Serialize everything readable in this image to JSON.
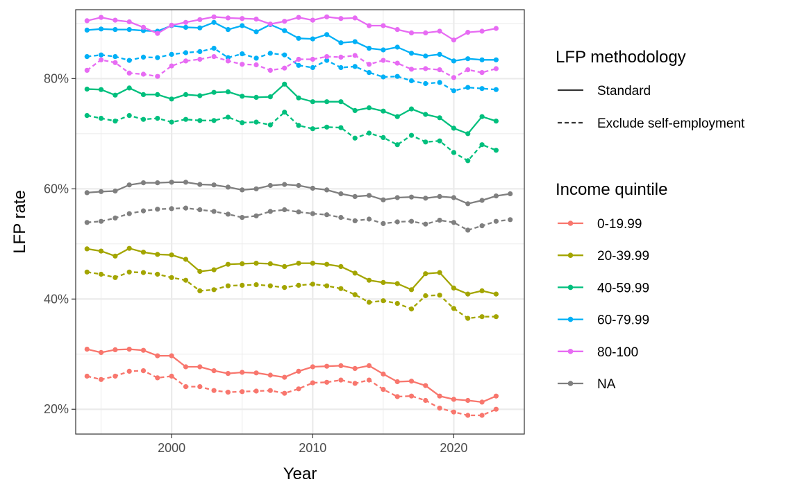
{
  "chart_data": {
    "type": "line",
    "xlabel": "Year",
    "ylabel": "LFP rate",
    "xlim": [
      1993.2,
      2025.0
    ],
    "ylim": [
      15.5,
      92.5
    ],
    "x_ticks": [
      2000,
      2010,
      2020
    ],
    "y_ticks": [
      20,
      40,
      60,
      80
    ],
    "y_tick_labels": [
      "20%",
      "40%",
      "60%",
      "80%"
    ],
    "grid": true,
    "legend_placement": "right",
    "linetype_legend": {
      "title": "LFP methodology",
      "entries": [
        {
          "label": "Standard",
          "linetype": "solid"
        },
        {
          "label": "Exclude self-employment",
          "linetype": "dashed"
        }
      ]
    },
    "color_legend": {
      "title": "Income quintile",
      "entries": [
        {
          "label": "0-19.99",
          "color": "#F8766D"
        },
        {
          "label": "20-39.99",
          "color": "#A3A500"
        },
        {
          "label": "40-59.99",
          "color": "#00BF7D"
        },
        {
          "label": "60-79.99",
          "color": "#00B0F6"
        },
        {
          "label": "80-100",
          "color": "#E76BF3"
        },
        {
          "label": "NA",
          "color": "#7F7F7F"
        }
      ]
    },
    "series": [
      {
        "quintile": "0-19.99",
        "method": "Standard",
        "x": [
          1994,
          1995,
          1996,
          1997,
          1998,
          1999,
          2000,
          2001,
          2002,
          2003,
          2004,
          2005,
          2006,
          2007,
          2008,
          2009,
          2010,
          2011,
          2012,
          2013,
          2014,
          2015,
          2016,
          2017,
          2018,
          2019,
          2020,
          2021,
          2022,
          2023
        ],
        "values": [
          30.9,
          30.3,
          30.8,
          30.9,
          30.7,
          29.7,
          29.7,
          27.7,
          27.7,
          27.0,
          26.5,
          26.7,
          26.6,
          26.2,
          25.8,
          26.9,
          27.7,
          27.8,
          27.9,
          27.4,
          27.9,
          26.4,
          25.0,
          25.1,
          24.3,
          22.4,
          21.8,
          21.6,
          21.3,
          22.4
        ]
      },
      {
        "quintile": "0-19.99",
        "method": "Exclude self-employment",
        "x": [
          1994,
          1995,
          1996,
          1997,
          1998,
          1999,
          2000,
          2001,
          2002,
          2003,
          2004,
          2005,
          2006,
          2007,
          2008,
          2009,
          2010,
          2011,
          2012,
          2013,
          2014,
          2015,
          2016,
          2017,
          2018,
          2019,
          2020,
          2021,
          2022,
          2023
        ],
        "values": [
          26.0,
          25.4,
          26.0,
          26.9,
          27.0,
          25.7,
          26.0,
          24.1,
          24.1,
          23.4,
          23.1,
          23.2,
          23.3,
          23.4,
          22.9,
          23.7,
          24.8,
          24.9,
          25.3,
          24.7,
          25.3,
          23.6,
          22.3,
          22.4,
          21.6,
          20.2,
          19.5,
          18.9,
          18.9,
          20.0
        ]
      },
      {
        "quintile": "20-39.99",
        "method": "Standard",
        "x": [
          1994,
          1995,
          1996,
          1997,
          1998,
          1999,
          2000,
          2001,
          2002,
          2003,
          2004,
          2005,
          2006,
          2007,
          2008,
          2009,
          2010,
          2011,
          2012,
          2013,
          2014,
          2015,
          2016,
          2017,
          2018,
          2019,
          2020,
          2021,
          2022,
          2023
        ],
        "values": [
          49.1,
          48.7,
          47.8,
          49.2,
          48.5,
          48.1,
          48.0,
          47.2,
          45.0,
          45.3,
          46.3,
          46.4,
          46.5,
          46.4,
          45.9,
          46.5,
          46.5,
          46.3,
          45.9,
          44.7,
          43.4,
          43.0,
          42.8,
          41.7,
          44.6,
          44.8,
          42.0,
          40.9,
          41.5,
          40.9
        ]
      },
      {
        "quintile": "20-39.99",
        "method": "Exclude self-employment",
        "x": [
          1994,
          1995,
          1996,
          1997,
          1998,
          1999,
          2000,
          2001,
          2002,
          2003,
          2004,
          2005,
          2006,
          2007,
          2008,
          2009,
          2010,
          2011,
          2012,
          2013,
          2014,
          2015,
          2016,
          2017,
          2018,
          2019,
          2020,
          2021,
          2022,
          2023
        ],
        "values": [
          44.9,
          44.5,
          43.9,
          44.9,
          44.8,
          44.5,
          43.9,
          43.4,
          41.5,
          41.7,
          42.4,
          42.5,
          42.6,
          42.4,
          42.1,
          42.5,
          42.7,
          42.4,
          41.9,
          40.8,
          39.4,
          39.7,
          39.2,
          38.2,
          40.6,
          40.7,
          38.3,
          36.5,
          36.8,
          36.8
        ]
      },
      {
        "quintile": "40-59.99",
        "method": "Standard",
        "x": [
          1994,
          1995,
          1996,
          1997,
          1998,
          1999,
          2000,
          2001,
          2002,
          2003,
          2004,
          2005,
          2006,
          2007,
          2008,
          2009,
          2010,
          2011,
          2012,
          2013,
          2014,
          2015,
          2016,
          2017,
          2018,
          2019,
          2020,
          2021,
          2022,
          2023
        ],
        "values": [
          78.1,
          78.0,
          77.0,
          78.3,
          77.1,
          77.1,
          76.3,
          77.1,
          76.9,
          77.5,
          77.6,
          76.8,
          76.6,
          76.7,
          79.0,
          76.5,
          75.8,
          75.8,
          75.8,
          74.2,
          74.7,
          74.1,
          73.1,
          74.5,
          73.5,
          72.9,
          71.0,
          70.0,
          73.1,
          72.3
        ]
      },
      {
        "quintile": "40-59.99",
        "method": "Exclude self-employment",
        "x": [
          1994,
          1995,
          1996,
          1997,
          1998,
          1999,
          2000,
          2001,
          2002,
          2003,
          2004,
          2005,
          2006,
          2007,
          2008,
          2009,
          2010,
          2011,
          2012,
          2013,
          2014,
          2015,
          2016,
          2017,
          2018,
          2019,
          2020,
          2021,
          2022,
          2023
        ],
        "values": [
          73.3,
          72.8,
          72.3,
          73.3,
          72.6,
          72.8,
          72.1,
          72.6,
          72.4,
          72.4,
          73.0,
          72.0,
          72.1,
          71.6,
          73.9,
          71.5,
          70.9,
          71.2,
          71.1,
          69.2,
          70.1,
          69.3,
          68.0,
          69.7,
          68.5,
          68.7,
          66.6,
          65.1,
          68.0,
          67.0
        ]
      },
      {
        "quintile": "60-79.99",
        "method": "Standard",
        "x": [
          1994,
          1995,
          1996,
          1997,
          1998,
          1999,
          2000,
          2001,
          2002,
          2003,
          2004,
          2005,
          2006,
          2007,
          2008,
          2009,
          2010,
          2011,
          2012,
          2013,
          2014,
          2015,
          2016,
          2017,
          2018,
          2019,
          2020,
          2021,
          2022,
          2023
        ],
        "values": [
          88.8,
          89.0,
          88.9,
          88.9,
          88.7,
          88.6,
          89.6,
          89.3,
          89.2,
          90.2,
          88.9,
          89.6,
          88.5,
          89.8,
          88.7,
          87.3,
          87.2,
          88.0,
          86.5,
          86.7,
          85.5,
          85.2,
          85.7,
          84.6,
          84.1,
          84.4,
          83.2,
          83.6,
          83.4,
          83.4
        ]
      },
      {
        "quintile": "60-79.99",
        "method": "Exclude self-employment",
        "x": [
          1994,
          1995,
          1996,
          1997,
          1998,
          1999,
          2000,
          2001,
          2002,
          2003,
          2004,
          2005,
          2006,
          2007,
          2008,
          2009,
          2010,
          2011,
          2012,
          2013,
          2014,
          2015,
          2016,
          2017,
          2018,
          2019,
          2020,
          2021,
          2022,
          2023
        ],
        "values": [
          84.0,
          84.3,
          84.0,
          83.3,
          83.9,
          83.8,
          84.4,
          84.7,
          84.9,
          85.5,
          83.8,
          84.5,
          83.7,
          84.6,
          84.3,
          82.4,
          82.0,
          83.3,
          82.0,
          82.2,
          81.1,
          80.3,
          80.4,
          79.6,
          79.1,
          79.3,
          77.8,
          78.4,
          78.2,
          78.0
        ]
      },
      {
        "quintile": "80-100",
        "method": "Standard",
        "x": [
          1994,
          1995,
          1996,
          1997,
          1998,
          1999,
          2000,
          2001,
          2002,
          2003,
          2004,
          2005,
          2006,
          2007,
          2008,
          2009,
          2010,
          2011,
          2012,
          2013,
          2014,
          2015,
          2016,
          2017,
          2018,
          2019,
          2020,
          2021,
          2022,
          2023
        ],
        "values": [
          90.5,
          91.1,
          90.6,
          90.3,
          89.3,
          88.2,
          89.7,
          90.2,
          90.7,
          91.2,
          91.0,
          90.9,
          90.8,
          89.9,
          90.4,
          91.1,
          90.6,
          91.2,
          90.9,
          91.0,
          89.6,
          89.6,
          88.9,
          88.3,
          88.3,
          88.6,
          87.0,
          88.4,
          88.6,
          89.1
        ]
      },
      {
        "quintile": "80-100",
        "method": "Exclude self-employment",
        "x": [
          1994,
          1995,
          1996,
          1997,
          1998,
          1999,
          2000,
          2001,
          2002,
          2003,
          2004,
          2005,
          2006,
          2007,
          2008,
          2009,
          2010,
          2011,
          2012,
          2013,
          2014,
          2015,
          2016,
          2017,
          2018,
          2019,
          2020,
          2021,
          2022,
          2023
        ],
        "values": [
          81.5,
          83.4,
          82.9,
          81.0,
          80.8,
          80.4,
          82.3,
          83.2,
          83.5,
          84.0,
          83.2,
          82.6,
          82.5,
          81.5,
          81.9,
          83.5,
          83.5,
          84.0,
          83.9,
          84.2,
          82.6,
          83.3,
          82.8,
          81.7,
          81.8,
          81.6,
          80.2,
          81.6,
          81.1,
          81.8
        ]
      },
      {
        "quintile": "NA",
        "method": "Standard",
        "x": [
          1994,
          1995,
          1996,
          1997,
          1998,
          1999,
          2000,
          2001,
          2002,
          2003,
          2004,
          2005,
          2006,
          2007,
          2008,
          2009,
          2010,
          2011,
          2012,
          2013,
          2014,
          2015,
          2016,
          2017,
          2018,
          2019,
          2020,
          2021,
          2022,
          2023,
          2024
        ],
        "values": [
          59.3,
          59.5,
          59.6,
          60.7,
          61.1,
          61.1,
          61.2,
          61.2,
          60.8,
          60.7,
          60.3,
          59.8,
          60.0,
          60.6,
          60.8,
          60.6,
          60.1,
          59.8,
          59.1,
          58.6,
          58.8,
          58.0,
          58.4,
          58.5,
          58.3,
          58.6,
          58.4,
          57.3,
          57.9,
          58.7,
          59.1
        ]
      },
      {
        "quintile": "NA",
        "method": "Exclude self-employment",
        "x": [
          1994,
          1995,
          1996,
          1997,
          1998,
          1999,
          2000,
          2001,
          2002,
          2003,
          2004,
          2005,
          2006,
          2007,
          2008,
          2009,
          2010,
          2011,
          2012,
          2013,
          2014,
          2015,
          2016,
          2017,
          2018,
          2019,
          2020,
          2021,
          2022,
          2023,
          2024
        ],
        "values": [
          53.9,
          54.1,
          54.7,
          55.5,
          56.0,
          56.3,
          56.4,
          56.5,
          56.2,
          55.9,
          55.4,
          54.8,
          55.1,
          55.9,
          56.2,
          55.8,
          55.5,
          55.3,
          54.8,
          54.2,
          54.5,
          53.7,
          54.0,
          54.1,
          53.6,
          54.3,
          53.9,
          52.5,
          53.3,
          54.1,
          54.4
        ]
      }
    ]
  }
}
